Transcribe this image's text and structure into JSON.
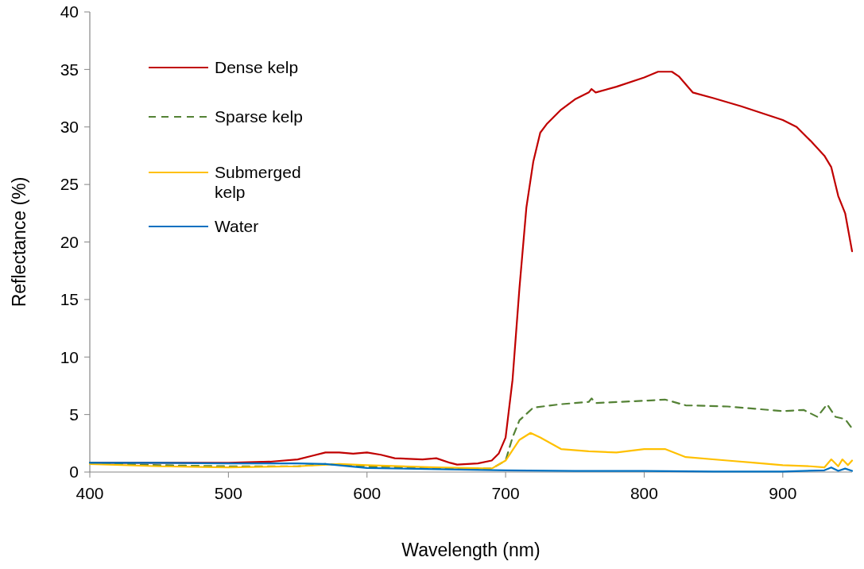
{
  "chart_data": {
    "type": "line",
    "xlabel": "Wavelength (nm)",
    "ylabel": "Reflectance (%)",
    "xlim": [
      400,
      950
    ],
    "xticks": [
      400,
      500,
      600,
      700,
      800,
      900
    ],
    "ylim": [
      0,
      40
    ],
    "yticks": [
      0,
      5,
      10,
      15,
      20,
      25,
      30,
      35,
      40
    ],
    "grid": false,
    "legend": "top left",
    "marker": "none",
    "series": [
      {
        "name": "Dense kelp",
        "color": "#c00000",
        "line_style": "solid",
        "x": [
          400,
          450,
          500,
          530,
          550,
          560,
          570,
          580,
          590,
          600,
          610,
          620,
          640,
          650,
          660,
          665,
          680,
          690,
          695,
          700,
          705,
          710,
          715,
          720,
          725,
          730,
          740,
          750,
          760,
          762,
          765,
          780,
          800,
          810,
          820,
          825,
          835,
          850,
          870,
          890,
          900,
          910,
          920,
          930,
          935,
          940,
          945,
          950
        ],
        "values": [
          0.8,
          0.8,
          0.8,
          0.9,
          1.1,
          1.4,
          1.7,
          1.7,
          1.6,
          1.7,
          1.5,
          1.2,
          1.1,
          1.2,
          0.8,
          0.65,
          0.75,
          1.0,
          1.6,
          3,
          8,
          16,
          23,
          27,
          29.5,
          30.3,
          31.5,
          32.4,
          33.0,
          33.3,
          33.0,
          33.5,
          34.3,
          34.8,
          34.8,
          34.4,
          33,
          32.5,
          31.8,
          31.0,
          30.6,
          30.0,
          28.8,
          27.5,
          26.5,
          24,
          22.5,
          19.2
        ]
      },
      {
        "name": "Sparse kelp",
        "color": "#548235",
        "line_style": "dashed",
        "x": [
          400,
          450,
          500,
          550,
          570,
          600,
          650,
          690,
          700,
          705,
          710,
          720,
          740,
          760,
          762,
          765,
          800,
          815,
          830,
          860,
          880,
          900,
          915,
          925,
          932,
          938,
          945,
          950
        ],
        "values": [
          0.8,
          0.6,
          0.5,
          0.5,
          0.7,
          0.5,
          0.3,
          0.3,
          1.0,
          3,
          4.5,
          5.6,
          5.9,
          6.1,
          6.4,
          6.0,
          6.2,
          6.3,
          5.8,
          5.7,
          5.5,
          5.3,
          5.4,
          4.8,
          5.9,
          4.8,
          4.6,
          3.8
        ]
      },
      {
        "name": "Submerged kelp",
        "color": "#ffc000",
        "line_style": "solid",
        "x": [
          400,
          450,
          500,
          550,
          580,
          600,
          650,
          690,
          700,
          710,
          718,
          725,
          740,
          760,
          780,
          800,
          815,
          830,
          860,
          880,
          900,
          920,
          930,
          935,
          940,
          943,
          947,
          950
        ],
        "values": [
          0.7,
          0.5,
          0.4,
          0.5,
          0.7,
          0.6,
          0.4,
          0.3,
          1.0,
          2.8,
          3.4,
          3.0,
          2.0,
          1.8,
          1.7,
          2.0,
          2.0,
          1.3,
          1.0,
          0.8,
          0.6,
          0.5,
          0.4,
          1.1,
          0.5,
          1.1,
          0.6,
          1.0
        ]
      },
      {
        "name": "Water",
        "color": "#0070c0",
        "line_style": "solid",
        "x": [
          400,
          450,
          500,
          550,
          570,
          600,
          650,
          700,
          750,
          800,
          850,
          900,
          930,
          935,
          940,
          945,
          950
        ],
        "values": [
          0.8,
          0.8,
          0.75,
          0.75,
          0.7,
          0.35,
          0.25,
          0.15,
          0.1,
          0.1,
          0.05,
          0.05,
          0.15,
          0.4,
          0.1,
          0.3,
          0.1
        ]
      }
    ]
  }
}
